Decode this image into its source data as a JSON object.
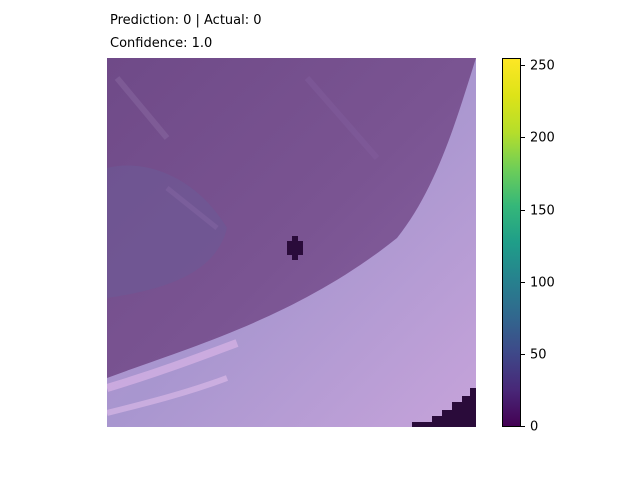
{
  "figure": {
    "prediction_line": "Prediction: 0 | Actual: 0",
    "confidence_line": "Confidence: 1.0"
  },
  "colorbar": {
    "colormap": "viridis",
    "ticks": [
      "0",
      "50",
      "100",
      "150",
      "200",
      "250"
    ]
  },
  "image": {
    "description_colors": {
      "dark_purple": "#6e4a86",
      "mid_purple": "#7d5896",
      "light_lavender": "#c79fd6",
      "blue_lavender": "#a897d3",
      "black_patch": "#2a0b3a"
    }
  }
}
